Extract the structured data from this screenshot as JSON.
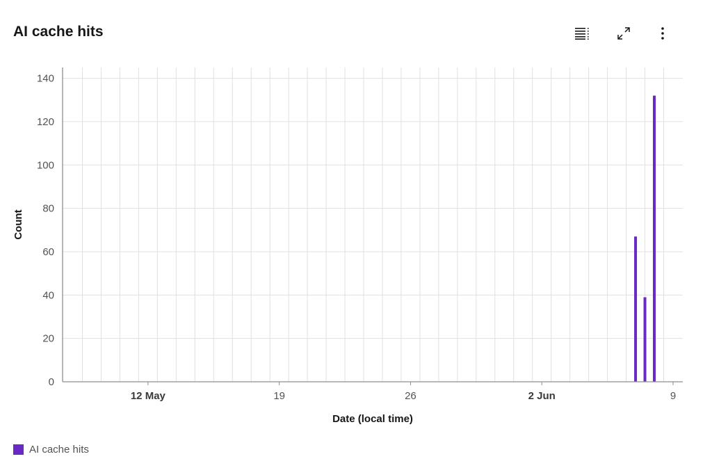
{
  "header": {
    "title": "AI cache hits",
    "toolbar": {
      "table_icon": "table-view-icon",
      "maximize_icon": "maximize-icon",
      "overflow_icon": "overflow-menu-vertical-icon"
    }
  },
  "colors": {
    "series": "#6929c4",
    "grid": "#e0e0e0",
    "axis": "#8d8d8d"
  },
  "chart_data": {
    "type": "bar",
    "title": "AI cache hits",
    "xlabel": "Date (local time)",
    "ylabel": "Count",
    "x_axis": "date",
    "xlim": [
      "2024-05-08",
      "2024-06-09"
    ],
    "ylim": [
      0,
      145
    ],
    "y_ticks": [
      0,
      20,
      40,
      60,
      80,
      100,
      120,
      140
    ],
    "x_ticks": [
      {
        "date": "2024-05-12",
        "label": "12 May",
        "bold": true
      },
      {
        "date": "2024-05-19",
        "label": "19",
        "bold": false
      },
      {
        "date": "2024-05-26",
        "label": "26",
        "bold": false
      },
      {
        "date": "2024-06-02",
        "label": "2 Jun",
        "bold": true
      },
      {
        "date": "2024-06-09",
        "label": "9",
        "bold": false
      }
    ],
    "grid": true,
    "legend_position": "bottom-left",
    "series": [
      {
        "name": "AI cache hits",
        "color": "#6929c4",
        "points": [
          {
            "x": "2024-06-07",
            "y": 67
          },
          {
            "x": "2024-06-07T12:00",
            "y": 39
          },
          {
            "x": "2024-06-08",
            "y": 132
          }
        ]
      }
    ]
  },
  "legend": {
    "items": [
      {
        "label": "AI cache hits",
        "color": "#6929c4"
      }
    ]
  }
}
